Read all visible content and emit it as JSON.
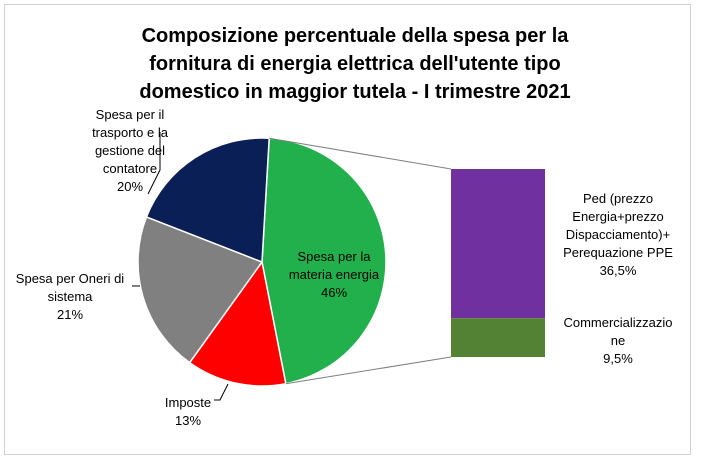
{
  "chart_data": {
    "type": "bar-of-pie",
    "title": "Composizione percentuale della spesa per la\nfornitura di energia elettrica dell'utente tipo\ndomestico in maggior tutela - I trimestre 2021",
    "pie": {
      "slices": [
        {
          "key": "materia",
          "label": "Spesa per la\nmateria energia\n46%",
          "value": 46,
          "color": "#21b04b"
        },
        {
          "key": "imposte",
          "label": "Imposte\n13%",
          "value": 13,
          "color": "#ff0000"
        },
        {
          "key": "oneri",
          "label": "Spesa per Oneri di\nsistema\n21%",
          "value": 21,
          "color": "#808080"
        },
        {
          "key": "trasporto",
          "label": "Spesa per il\ntrasporto e la\ngestione del\ncontatore\n20%",
          "value": 20,
          "color": "#0b1f57"
        }
      ]
    },
    "bar": {
      "segments": [
        {
          "key": "ped",
          "label": "Ped (prezzo\nEnergia+prezzo\nDispacciamento)+\nPerequazione PPE\n36,5%",
          "value": 36.5,
          "color": "#7030a0"
        },
        {
          "key": "comm",
          "label": "Commercializzazio\nne\n9,5%",
          "value": 9.5,
          "color": "#548235"
        }
      ]
    }
  }
}
